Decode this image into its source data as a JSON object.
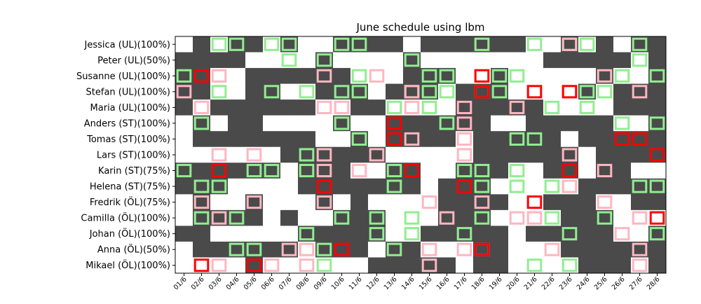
{
  "chart_data": {
    "type": "heatmap",
    "title": "June schedule using lbm",
    "rows": [
      "Jessica (UL)(100%)",
      "Peter (UL)(50%)",
      "Susanne (UL)(100%)",
      "Stefan (UL)(100%)",
      "Maria (UL)(100%)",
      "Anders (ST)(100%)",
      "Tomas (ST)(100%)",
      "Lars (ST)(100%)",
      "Karin (ST)(75%)",
      "Helena (ST)(75%)",
      "Fredrik (ÖL)(75%)",
      "Camilla (ÖL)(100%)",
      "Johan (ÖL)(100%)",
      "Anna (ÖL)(50%)",
      "Mikael (ÖL)(100%)"
    ],
    "columns": [
      "01/6",
      "02/6",
      "03/6",
      "04/6",
      "05/6",
      "06/6",
      "07/6",
      "08/6",
      "09/6",
      "10/6",
      "11/6",
      "12/6",
      "13/6",
      "14/6",
      "15/6",
      "16/6",
      "17/6",
      "18/6",
      "19/6",
      "20/6",
      "21/6",
      "22/6",
      "23/6",
      "24/6",
      "25/6",
      "26/6",
      "27/6",
      "28/6"
    ],
    "grid": [
      "0101101001111011111100101011",
      "1111000010000100000001111101",
      "1100111111000111001000001001",
      "1100110011101110111000010111",
      "1011111100110000111110000111",
      "0101100001001111110011111001",
      "0111111100101111011111011111",
      "0000001111110000011111101111",
      "1111110111001100111001101100",
      "1110000111111101110000011111",
      "0100100010100001111001110011",
      "0111101001110001110000111000",
      "1100000111110011111011111001",
      "0111111011101100011000111111",
      "0000100000011111011000011101"
    ],
    "markers": [
      [
        "0000000000000000000000000000",
        "0000000000000000000000000000",
        "0010100000000000000000001000",
        "0010000000000010000000000000",
        "0000000000000000000000000000",
        "0000000000000000000000000000",
        "0000000000000000000000000000",
        "0000000000000000000000000000",
        "0000000000000000000000000000",
        "0000000000000000000000000000",
        "0000000000000000000000000000",
        "0000000000000000000000000000",
        "0000000000000000000000000000",
        "0000000000000000000000000000",
        "0000000000000000000000000000"
      ]
    ],
    "green": [
      "0011011001100000010010110010",
      "0000001010000100000000000010",
      "1000000000100011011100000101",
      "0010010101100111011000011000",
      "0000000000001010000001010000",
      "0100000001000001000000000101",
      "0000000000100000000110000000",
      "0000000100000000000000000000",
      "1000110100001000110100000000",
      "0110000000001000010101100011",
      "0000000000000000000000000000",
      "0101000001010100010001001000",
      "0000000100010100100000100001",
      "0001100110001000000000000000",
      "0000000010000000000010100000"
    ],
    "pink": [
      "0000000000000000000000100000",
      "0000000000000000000000000000",
      "0010000010010000000000001000",
      "1000000000000100000000100010",
      "0100000011000100100100000000",
      "0000000000000000100000000000",
      "0000000000000100100000000000",
      "0010100010010000100000100000",
      "0000000010100000000000001000",
      "0000000000000000000000100000",
      "0100100010000010010000001000",
      "0010000000000001000110000010",
      "0000000000000000000000000100",
      "0000001100000010110001000010",
      "0010010100000010000000000010"
    ],
    "red": [
      "0000000000000000000000000000",
      "0000000000000000000000000000",
      "0100000000000000010000000000",
      "0000000000000000010010100000",
      "0000000000000000000000000000",
      "0000000000001000000000000000",
      "0000000000001000000000000110",
      "0000000000000000000000000001",
      "0010000000000100000000100000",
      "0000000010000000100000000000",
      "0000000000000000000010000000",
      "0000000000000000000000000001",
      "0000000000000000000000000000",
      "0000000001000000010000000000",
      "0100100000000000000000000000"
    ],
    "colors": {
      "filled": "#4a4a4a",
      "empty": "#ffffff",
      "green": "#90ee90",
      "pink": "#ffb6c1",
      "red": "#ff0000"
    }
  }
}
